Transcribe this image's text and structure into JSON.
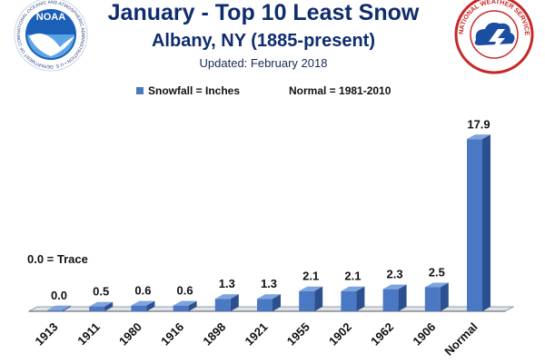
{
  "header": {
    "title": "January - Top 10 Least Snow",
    "subtitle": "Albany, NY (1885-present)",
    "updated": "Updated: February 2018"
  },
  "legend": {
    "series": "Snowfall = Inches",
    "normal": "Normal = 1981-2010"
  },
  "note": "0.0 = Trace",
  "logos": {
    "left": {
      "name": "noaa-logo",
      "text": "NOAA",
      "ring_text": "NATIONAL OCEANIC AND ATMOSPHERIC ADMINISTRATION • U.S. DEPARTMENT OF COMMERCE"
    },
    "right": {
      "name": "nws-logo",
      "ring_text": "NATIONAL WEATHER SERVICE"
    }
  },
  "colors": {
    "bar_front": "#4a78c2",
    "bar_side": "#2c4f8f",
    "bar_top": "#7ea3de",
    "title": "#0f2c6e"
  },
  "chart_data": {
    "type": "bar",
    "categories": [
      "1913",
      "1911",
      "1980",
      "1916",
      "1898",
      "1921",
      "1955",
      "1902",
      "1962",
      "1906",
      "Normal"
    ],
    "values": [
      0.0,
      0.5,
      0.6,
      0.6,
      1.3,
      1.3,
      2.1,
      2.1,
      2.3,
      2.5,
      17.9
    ],
    "value_labels": [
      "0.0",
      "0.5",
      "0.6",
      "0.6",
      "1.3",
      "1.3",
      "2.1",
      "2.1",
      "2.3",
      "2.5",
      "17.9"
    ],
    "ylim": [
      0,
      20
    ],
    "grid": false,
    "legend_position": "top",
    "bar_style": "3d"
  }
}
